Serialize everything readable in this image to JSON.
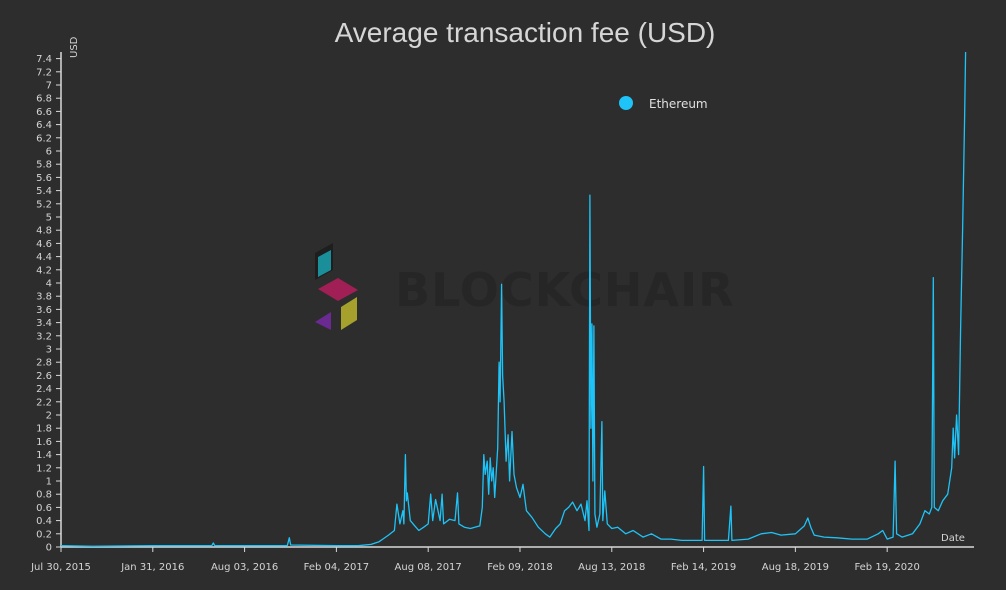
{
  "colors": {
    "background": "#2d2d2d",
    "axis": "#d9d9d9",
    "series": "#1ec3f7",
    "watermark_text": "#262626",
    "watermark_teal": "#1a8f9a",
    "watermark_magenta": "#a01f54",
    "watermark_purple": "#6a2a91",
    "watermark_olive": "#a6a12c"
  },
  "watermark": {
    "text": "BLOCKCHAIR",
    "icon": "blockchair-logo-icon"
  },
  "chart_data": {
    "type": "line",
    "title": "Average transaction fee (USD)",
    "ylabel": "USD",
    "xlabel": "Date",
    "legend_position": "top-right",
    "grid": false,
    "xlim": [
      "2015-07-30",
      "2020-08-12"
    ],
    "ylim": [
      0,
      7.5
    ],
    "x_ticks": [
      {
        "date": "2015-07-30",
        "label": "Jul 30, 2015"
      },
      {
        "date": "2016-01-31",
        "label": "Jan 31, 2016"
      },
      {
        "date": "2016-08-03",
        "label": "Aug 03, 2016"
      },
      {
        "date": "2017-02-04",
        "label": "Feb 04, 2017"
      },
      {
        "date": "2017-08-08",
        "label": "Aug 08, 2017"
      },
      {
        "date": "2018-02-09",
        "label": "Feb 09, 2018"
      },
      {
        "date": "2018-08-13",
        "label": "Aug 13, 2018"
      },
      {
        "date": "2019-02-14",
        "label": "Feb 14, 2019"
      },
      {
        "date": "2019-08-18",
        "label": "Aug 18, 2019"
      },
      {
        "date": "2020-02-19",
        "label": "Feb 19, 2020"
      }
    ],
    "y_ticks": [
      "0",
      "0.2",
      "0.4",
      "0.6",
      "0.8",
      "1",
      "1.2",
      "1.4",
      "1.6",
      "1.8",
      "2",
      "2.2",
      "2.4",
      "2.6",
      "2.8",
      "3",
      "3.2",
      "3.4",
      "3.6",
      "3.8",
      "4",
      "4.2",
      "4.4",
      "4.6",
      "4.8",
      "5",
      "5.2",
      "5.4",
      "5.6",
      "5.8",
      "6",
      "6.2",
      "6.4",
      "6.6",
      "6.8",
      "7",
      "7.2",
      "7.4"
    ],
    "series": [
      {
        "name": "Ethereum",
        "color": "#1ec3f7",
        "points": [
          [
            "2015-07-30",
            0.02
          ],
          [
            "2015-10-01",
            0.01
          ],
          [
            "2016-01-31",
            0.02
          ],
          [
            "2016-04-01",
            0.02
          ],
          [
            "2016-05-29",
            0.02
          ],
          [
            "2016-06-01",
            0.06
          ],
          [
            "2016-06-04",
            0.02
          ],
          [
            "2016-08-03",
            0.02
          ],
          [
            "2016-10-28",
            0.02
          ],
          [
            "2016-11-01",
            0.14
          ],
          [
            "2016-11-04",
            0.03
          ],
          [
            "2017-02-04",
            0.02
          ],
          [
            "2017-03-20",
            0.02
          ],
          [
            "2017-04-15",
            0.04
          ],
          [
            "2017-05-01",
            0.08
          ],
          [
            "2017-05-20",
            0.18
          ],
          [
            "2017-06-01",
            0.25
          ],
          [
            "2017-06-06",
            0.65
          ],
          [
            "2017-06-12",
            0.35
          ],
          [
            "2017-06-18",
            0.55
          ],
          [
            "2017-06-20",
            0.35
          ],
          [
            "2017-06-23",
            1.4
          ],
          [
            "2017-06-25",
            0.7
          ],
          [
            "2017-06-27",
            0.82
          ],
          [
            "2017-07-03",
            0.4
          ],
          [
            "2017-07-12",
            0.32
          ],
          [
            "2017-07-20",
            0.25
          ],
          [
            "2017-07-30",
            0.3
          ],
          [
            "2017-08-08",
            0.35
          ],
          [
            "2017-08-13",
            0.8
          ],
          [
            "2017-08-17",
            0.4
          ],
          [
            "2017-08-23",
            0.72
          ],
          [
            "2017-09-01",
            0.4
          ],
          [
            "2017-09-05",
            0.8
          ],
          [
            "2017-09-08",
            0.35
          ],
          [
            "2017-09-20",
            0.42
          ],
          [
            "2017-10-01",
            0.4
          ],
          [
            "2017-10-06",
            0.82
          ],
          [
            "2017-10-09",
            0.35
          ],
          [
            "2017-10-20",
            0.3
          ],
          [
            "2017-11-01",
            0.28
          ],
          [
            "2017-11-10",
            0.3
          ],
          [
            "2017-11-20",
            0.32
          ],
          [
            "2017-11-25",
            0.6
          ],
          [
            "2017-11-28",
            1.4
          ],
          [
            "2017-12-01",
            1.1
          ],
          [
            "2017-12-05",
            1.3
          ],
          [
            "2017-12-08",
            0.8
          ],
          [
            "2017-12-11",
            1.35
          ],
          [
            "2017-12-14",
            1.0
          ],
          [
            "2017-12-17",
            1.2
          ],
          [
            "2017-12-20",
            0.75
          ],
          [
            "2017-12-26",
            1.5
          ],
          [
            "2017-12-29",
            2.8
          ],
          [
            "2017-12-31",
            2.2
          ],
          [
            "2018-01-03",
            3.98
          ],
          [
            "2018-01-05",
            2.6
          ],
          [
            "2018-01-08",
            2.2
          ],
          [
            "2018-01-12",
            1.3
          ],
          [
            "2018-01-16",
            1.7
          ],
          [
            "2018-01-19",
            1.0
          ],
          [
            "2018-01-24",
            1.75
          ],
          [
            "2018-01-28",
            1.1
          ],
          [
            "2018-02-02",
            0.9
          ],
          [
            "2018-02-09",
            0.75
          ],
          [
            "2018-02-15",
            0.95
          ],
          [
            "2018-02-22",
            0.55
          ],
          [
            "2018-03-05",
            0.45
          ],
          [
            "2018-03-18",
            0.3
          ],
          [
            "2018-04-01",
            0.2
          ],
          [
            "2018-04-10",
            0.15
          ],
          [
            "2018-04-22",
            0.28
          ],
          [
            "2018-05-01",
            0.35
          ],
          [
            "2018-05-10",
            0.55
          ],
          [
            "2018-05-18",
            0.6
          ],
          [
            "2018-05-26",
            0.68
          ],
          [
            "2018-06-04",
            0.55
          ],
          [
            "2018-06-12",
            0.65
          ],
          [
            "2018-06-20",
            0.4
          ],
          [
            "2018-06-24",
            0.7
          ],
          [
            "2018-06-28",
            0.25
          ],
          [
            "2018-06-30",
            5.33
          ],
          [
            "2018-07-02",
            1.8
          ],
          [
            "2018-07-04",
            3.38
          ],
          [
            "2018-07-06",
            1.0
          ],
          [
            "2018-07-08",
            3.35
          ],
          [
            "2018-07-10",
            0.5
          ],
          [
            "2018-07-14",
            0.3
          ],
          [
            "2018-07-20",
            0.5
          ],
          [
            "2018-07-24",
            1.9
          ],
          [
            "2018-07-26",
            0.4
          ],
          [
            "2018-07-30",
            0.85
          ],
          [
            "2018-08-04",
            0.35
          ],
          [
            "2018-08-13",
            0.28
          ],
          [
            "2018-08-25",
            0.3
          ],
          [
            "2018-09-10",
            0.2
          ],
          [
            "2018-09-25",
            0.25
          ],
          [
            "2018-10-15",
            0.15
          ],
          [
            "2018-11-01",
            0.2
          ],
          [
            "2018-11-20",
            0.12
          ],
          [
            "2018-12-10",
            0.12
          ],
          [
            "2019-01-01",
            0.1
          ],
          [
            "2019-01-20",
            0.1
          ],
          [
            "2019-02-11",
            0.1
          ],
          [
            "2019-02-14",
            1.22
          ],
          [
            "2019-02-16",
            0.1
          ],
          [
            "2019-03-10",
            0.1
          ],
          [
            "2019-04-05",
            0.1
          ],
          [
            "2019-04-10",
            0.62
          ],
          [
            "2019-04-12",
            0.1
          ],
          [
            "2019-05-15",
            0.12
          ],
          [
            "2019-06-10",
            0.2
          ],
          [
            "2019-07-01",
            0.22
          ],
          [
            "2019-07-20",
            0.18
          ],
          [
            "2019-08-18",
            0.2
          ],
          [
            "2019-09-05",
            0.32
          ],
          [
            "2019-09-12",
            0.44
          ],
          [
            "2019-09-18",
            0.3
          ],
          [
            "2019-09-25",
            0.18
          ],
          [
            "2019-10-15",
            0.15
          ],
          [
            "2019-11-10",
            0.14
          ],
          [
            "2019-12-10",
            0.12
          ],
          [
            "2020-01-10",
            0.12
          ],
          [
            "2020-02-01",
            0.2
          ],
          [
            "2020-02-10",
            0.25
          ],
          [
            "2020-02-19",
            0.12
          ],
          [
            "2020-03-02",
            0.15
          ],
          [
            "2020-03-06",
            1.3
          ],
          [
            "2020-03-09",
            0.2
          ],
          [
            "2020-03-20",
            0.15
          ],
          [
            "2020-04-10",
            0.2
          ],
          [
            "2020-04-25",
            0.35
          ],
          [
            "2020-05-05",
            0.55
          ],
          [
            "2020-05-14",
            0.5
          ],
          [
            "2020-05-19",
            0.6
          ],
          [
            "2020-05-22",
            4.08
          ],
          [
            "2020-05-24",
            0.6
          ],
          [
            "2020-06-01",
            0.55
          ],
          [
            "2020-06-10",
            0.7
          ],
          [
            "2020-06-20",
            0.8
          ],
          [
            "2020-06-28",
            1.2
          ],
          [
            "2020-07-01",
            1.8
          ],
          [
            "2020-07-04",
            1.35
          ],
          [
            "2020-07-08",
            2.0
          ],
          [
            "2020-07-12",
            1.4
          ],
          [
            "2020-07-16",
            3.3
          ],
          [
            "2020-07-20",
            4.8
          ],
          [
            "2020-07-24",
            6.5
          ],
          [
            "2020-07-26",
            7.5
          ]
        ]
      }
    ]
  }
}
